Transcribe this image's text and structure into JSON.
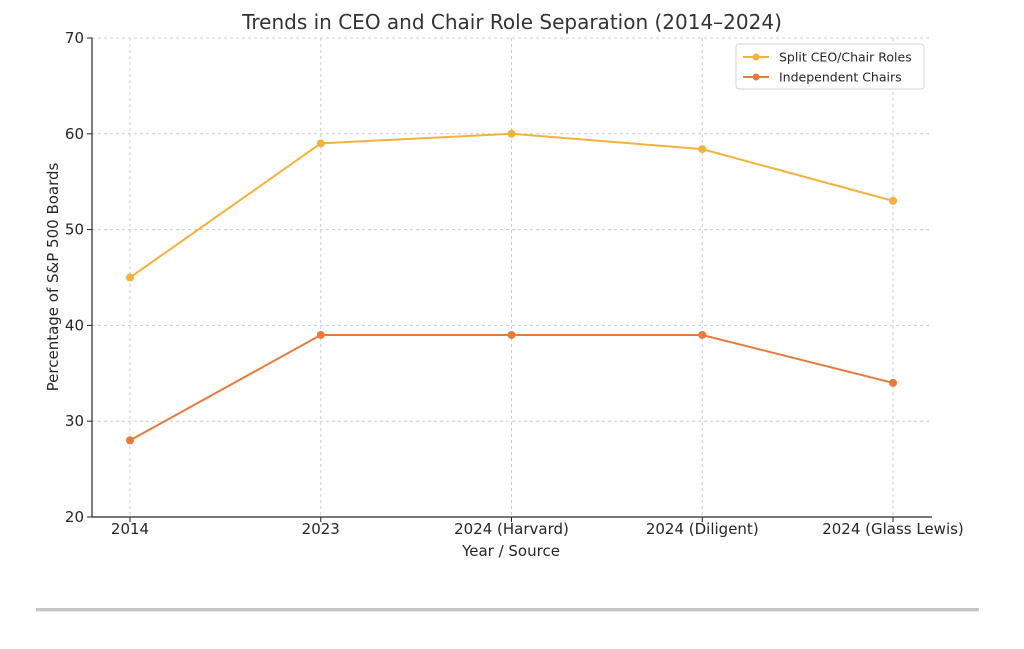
{
  "chart_data": {
    "type": "line",
    "title": "Trends in CEO and Chair Role Separation (2014–2024)",
    "xlabel": "Year / Source",
    "ylabel": "Percentage of S&P 500 Boards",
    "categories": [
      "2014",
      "2023",
      "2024 (Harvard)",
      "2024 (Diligent)",
      "2024 (Glass Lewis)"
    ],
    "ylim": [
      20,
      70
    ],
    "yticks": [
      20,
      30,
      40,
      50,
      60,
      70
    ],
    "grid": true,
    "legend_position": "top-right",
    "series": [
      {
        "name": "Split CEO/Chair Roles",
        "color": "#f3b23e",
        "values": [
          45,
          59,
          60,
          58.4,
          53
        ]
      },
      {
        "name": "Independent Chairs",
        "color": "#e57b3f",
        "values": [
          28,
          39,
          39,
          39,
          34
        ]
      }
    ]
  }
}
